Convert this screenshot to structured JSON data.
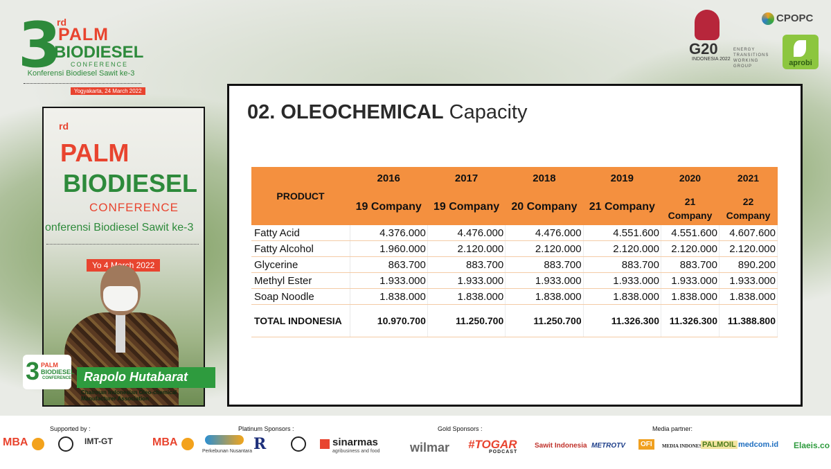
{
  "event": {
    "ordinal": "3",
    "ordinal_suffix": "rd",
    "line1": "PALM",
    "line2": "BIODIESEL",
    "line3": "CONFERENCE",
    "subtitle": "Konferensi Biodiesel Sawit ke-3",
    "date": "Yogyakarta, 24 March 2022"
  },
  "partner_logos": {
    "g20": "G20",
    "g20_sub": "INDONESIA 2022",
    "g20_group": "ENERGY TRANSITIONS WORKING GROUP",
    "cpopc": "CPOPC",
    "aprobi": "aprobi"
  },
  "speaker_backdrop": {
    "suffix": "rd",
    "line1": "PALM",
    "line2": "BIODIESEL",
    "line3": "CONFERENCE",
    "subtitle": "onferensi Biodiesel Sawit ke-3",
    "date": "Yo       4 March 2022"
  },
  "speaker": {
    "name": "Rapolo Hutabarat",
    "title": "Chairman Indonesian Oleo-chemical Manufacturer Association",
    "badge_line1": "PALM",
    "badge_line2": "BIODIESEL",
    "badge_line3": "CONFERENCE"
  },
  "slide": {
    "title_bold": "02. OLEOCHEMICAL",
    "title_rest": " Capacity",
    "table": {
      "product_header": "PRODUCT",
      "years": [
        "2016",
        "2017",
        "2018",
        "2019",
        "2020",
        "2021"
      ],
      "companies": [
        "19 Company",
        "19 Company",
        "20 Company",
        "21 Company",
        "21 Company",
        "22 Company"
      ],
      "rows": [
        {
          "name": "Fatty Acid",
          "values": [
            "4.376.000",
            "4.476.000",
            "4.476.000",
            "4.551.600",
            "4.551.600",
            "4.607.600"
          ]
        },
        {
          "name": "Fatty Alcohol",
          "values": [
            "1.960.000",
            "2.120.000",
            "2.120.000",
            "2.120.000",
            "2.120.000",
            "2.120.000"
          ]
        },
        {
          "name": "Glycerine",
          "values": [
            "863.700",
            "883.700",
            "883.700",
            "883.700",
            "883.700",
            "890.200"
          ]
        },
        {
          "name": "Methyl Ester",
          "values": [
            "1.933.000",
            "1.933.000",
            "1.933.000",
            "1.933.000",
            "1.933.000",
            "1.933.000"
          ]
        },
        {
          "name": "Soap Noodle",
          "values": [
            "1.838.000",
            "1.838.000",
            "1.838.000",
            "1.838.000",
            "1.838.000",
            "1.838.000"
          ]
        }
      ],
      "total": {
        "name": "TOTAL INDONESIA",
        "values": [
          "10.970.700",
          "11.250.700",
          "11.250.700",
          "11.326.300",
          "11.326.300",
          "11.388.800"
        ]
      }
    }
  },
  "sponsors": {
    "supported_by_label": "Supported by :",
    "platinum_label": "Platinum Sponsors :",
    "gold_label": "Gold Sponsors :",
    "media_label": "Media partner:",
    "supported": [
      "MBA",
      "IMT-GT"
    ],
    "platinum": [
      "MBA",
      "Perkebunan Nusantara",
      "sinarmas"
    ],
    "platinum_sub": "agribusiness and food",
    "gold": [
      "wilmar",
      "#TOGAR"
    ],
    "gold_sub": "PODCAST",
    "media": [
      "Sawit Indonesia",
      "METROTV",
      "OFI",
      "MEDIA INDONESIA",
      "PALMOIL",
      "medcom.id",
      "Elaeis.co"
    ]
  },
  "colors": {
    "table_header": "#f4903f",
    "green": "#2e9b3e",
    "red": "#e8442f"
  }
}
